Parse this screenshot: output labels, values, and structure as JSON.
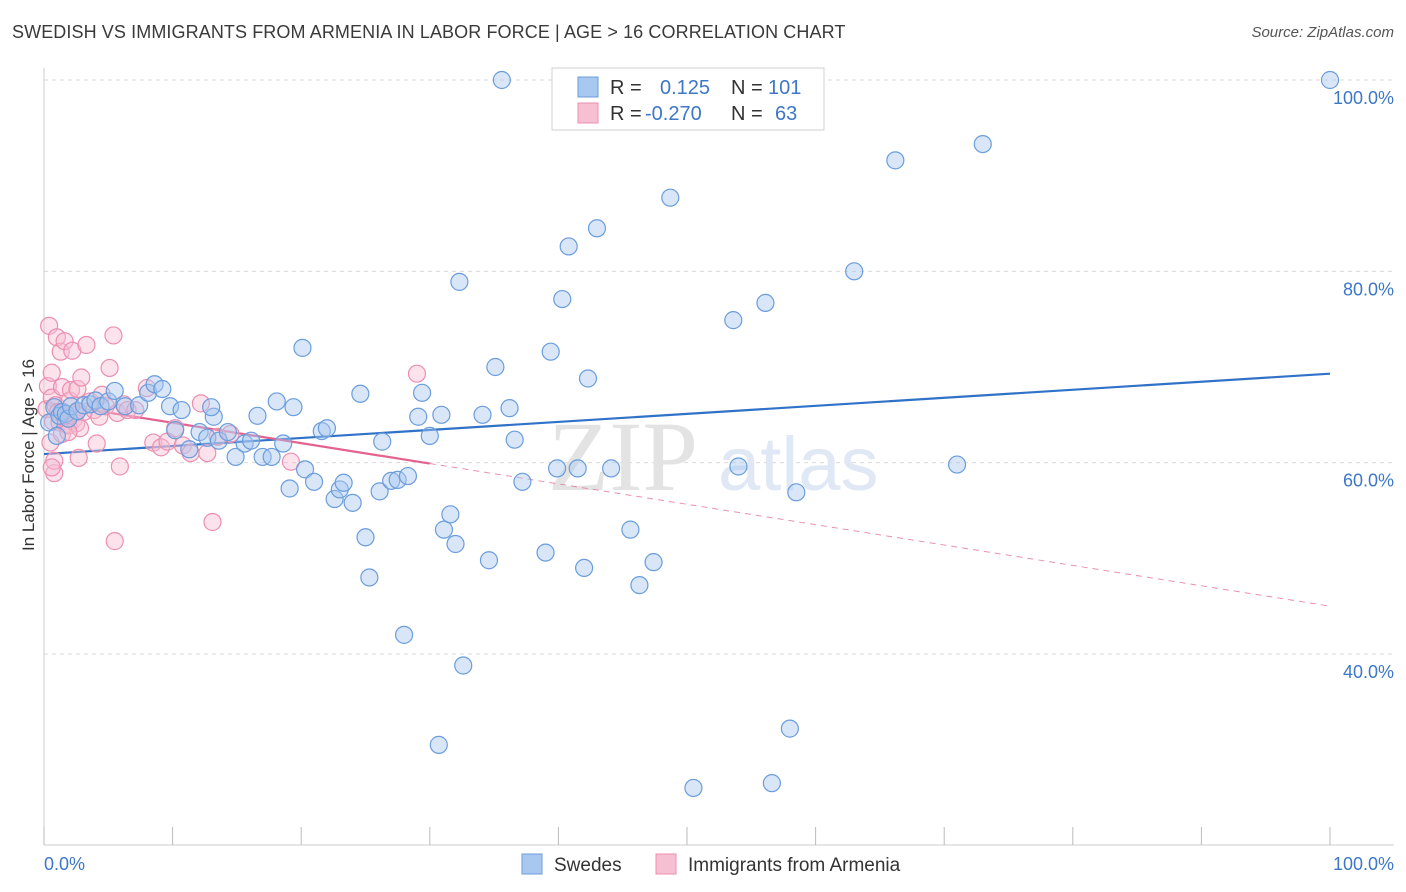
{
  "header": {
    "title": "SWEDISH VS IMMIGRANTS FROM ARMENIA IN LABOR FORCE | AGE > 16 CORRELATION CHART",
    "source": "Source: ZipAtlas.com"
  },
  "watermark": {
    "zip": "ZIP",
    "atlas": "atlas"
  },
  "legend": {
    "rows": [
      {
        "r_label": "R =",
        "r_value": "0.125",
        "n_label": "N =",
        "n_value": "101"
      },
      {
        "r_label": "R =",
        "r_value": "-0.270",
        "n_label": "N =",
        "n_value": "63"
      }
    ]
  },
  "colors": {
    "swedes_fill": "#a9c8ef",
    "swedes_stroke": "#6a9ddc",
    "swedes_line": "#2f72c8",
    "armenia_fill": "#f6bfd2",
    "armenia_stroke": "#ec8fb0",
    "armenia_line": "#e4628f",
    "axis_text": "#3d77c8",
    "grid": "#d9d9d9"
  },
  "chart_data": {
    "type": "scatter",
    "title": "SWEDISH VS IMMIGRANTS FROM ARMENIA IN LABOR FORCE | AGE > 16 CORRELATION CHART",
    "xlabel": "",
    "ylabel": "In Labor Force | Age > 16",
    "xlim": [
      0,
      100
    ],
    "ylim": [
      20,
      102
    ],
    "x_tick_labels": [
      "0.0%",
      "100.0%"
    ],
    "y_ticks": [
      40,
      60,
      80,
      100
    ],
    "y_tick_labels": [
      "40.0%",
      "60.0%",
      "80.0%",
      "100.0%"
    ],
    "series": [
      {
        "name": "Swedes",
        "R": 0.125,
        "N": 101,
        "trend": {
          "x": [
            0,
            100
          ],
          "y": [
            60.9,
            69.3
          ],
          "dashed_from": null
        },
        "points": [
          [
            0.4,
            64.2
          ],
          [
            0.8,
            65.8
          ],
          [
            1.0,
            62.8
          ],
          [
            1.2,
            64.9
          ],
          [
            1.4,
            65.3
          ],
          [
            1.7,
            65.1
          ],
          [
            1.9,
            64.6
          ],
          [
            2.1,
            65.9
          ],
          [
            2.6,
            65.4
          ],
          [
            3.1,
            66.0
          ],
          [
            3.6,
            66.1
          ],
          [
            4.0,
            66.5
          ],
          [
            4.4,
            65.9
          ],
          [
            5.0,
            66.4
          ],
          [
            5.5,
            67.5
          ],
          [
            6.3,
            65.9
          ],
          [
            7.4,
            66.0
          ],
          [
            8.1,
            67.3
          ],
          [
            8.6,
            68.2
          ],
          [
            9.2,
            67.7
          ],
          [
            9.8,
            65.9
          ],
          [
            10.2,
            63.4
          ],
          [
            10.7,
            65.5
          ],
          [
            11.3,
            61.4
          ],
          [
            12.1,
            63.2
          ],
          [
            12.7,
            62.6
          ],
          [
            13.2,
            64.8
          ],
          [
            13.6,
            62.3
          ],
          [
            14.3,
            63.2
          ],
          [
            14.9,
            60.6
          ],
          [
            15.6,
            62.0
          ],
          [
            16.1,
            62.3
          ],
          [
            16.6,
            64.9
          ],
          [
            17.0,
            60.6
          ],
          [
            17.7,
            60.6
          ],
          [
            18.1,
            66.4
          ],
          [
            18.6,
            62.0
          ],
          [
            19.1,
            57.3
          ],
          [
            19.4,
            65.8
          ],
          [
            20.3,
            59.3
          ],
          [
            20.1,
            72.0
          ],
          [
            21.0,
            58.0
          ],
          [
            21.6,
            63.3
          ],
          [
            22.0,
            63.6
          ],
          [
            22.6,
            56.2
          ],
          [
            23.0,
            57.2
          ],
          [
            23.3,
            57.9
          ],
          [
            24.0,
            55.8
          ],
          [
            24.6,
            67.2
          ],
          [
            25.0,
            52.2
          ],
          [
            25.3,
            48.0
          ],
          [
            26.1,
            57.0
          ],
          [
            26.3,
            62.2
          ],
          [
            27.0,
            58.1
          ],
          [
            27.5,
            58.2
          ],
          [
            28.0,
            42.0
          ],
          [
            28.3,
            58.6
          ],
          [
            29.1,
            64.8
          ],
          [
            29.4,
            67.3
          ],
          [
            30.0,
            62.8
          ],
          [
            30.7,
            30.5
          ],
          [
            31.1,
            53.0
          ],
          [
            31.6,
            54.6
          ],
          [
            32.0,
            51.5
          ],
          [
            32.3,
            78.9
          ],
          [
            32.6,
            38.8
          ],
          [
            34.1,
            65.0
          ],
          [
            34.6,
            49.8
          ],
          [
            35.1,
            70.0
          ],
          [
            35.6,
            100.0
          ],
          [
            36.2,
            65.7
          ],
          [
            36.6,
            62.4
          ],
          [
            37.2,
            58.0
          ],
          [
            39.0,
            50.6
          ],
          [
            39.4,
            71.6
          ],
          [
            39.9,
            59.4
          ],
          [
            40.3,
            77.1
          ],
          [
            40.8,
            82.6
          ],
          [
            41.5,
            59.4
          ],
          [
            42.0,
            49.0
          ],
          [
            42.3,
            68.8
          ],
          [
            43.0,
            84.5
          ],
          [
            44.1,
            59.4
          ],
          [
            45.6,
            53.0
          ],
          [
            46.3,
            47.2
          ],
          [
            47.4,
            49.6
          ],
          [
            48.7,
            87.7
          ],
          [
            50.5,
            26.0
          ],
          [
            53.6,
            74.9
          ],
          [
            54.0,
            59.6
          ],
          [
            56.1,
            76.7
          ],
          [
            56.6,
            26.5
          ],
          [
            58.0,
            32.2
          ],
          [
            58.5,
            56.9
          ],
          [
            63.0,
            80.0
          ],
          [
            66.2,
            91.6
          ],
          [
            71.0,
            59.8
          ],
          [
            73.0,
            93.3
          ],
          [
            100.0,
            100.0
          ],
          [
            30.9,
            65.0
          ],
          [
            13.0,
            65.8
          ]
        ]
      },
      {
        "name": "Immigrants from Armenia",
        "R": -0.27,
        "N": 63,
        "trend": {
          "x": [
            0,
            100
          ],
          "y": [
            66.3,
            45.0
          ],
          "solid_until": 30
        },
        "points": [
          [
            0.2,
            65.6
          ],
          [
            0.3,
            68.0
          ],
          [
            0.4,
            74.3
          ],
          [
            0.5,
            62.1
          ],
          [
            0.6,
            66.8
          ],
          [
            0.6,
            69.4
          ],
          [
            0.7,
            64.3
          ],
          [
            0.8,
            58.9
          ],
          [
            0.8,
            60.2
          ],
          [
            0.9,
            66.0
          ],
          [
            1.0,
            73.1
          ],
          [
            1.1,
            65.3
          ],
          [
            1.2,
            64.2
          ],
          [
            1.3,
            71.6
          ],
          [
            1.4,
            67.9
          ],
          [
            1.4,
            63.0
          ],
          [
            1.5,
            65.3
          ],
          [
            1.6,
            72.7
          ],
          [
            1.7,
            64.0
          ],
          [
            1.8,
            65.0
          ],
          [
            1.9,
            63.9
          ],
          [
            2.0,
            66.5
          ],
          [
            2.1,
            67.6
          ],
          [
            2.2,
            71.7
          ],
          [
            2.3,
            64.5
          ],
          [
            2.4,
            65.2
          ],
          [
            2.5,
            64.1
          ],
          [
            2.6,
            67.7
          ],
          [
            2.7,
            60.5
          ],
          [
            2.8,
            63.6
          ],
          [
            2.9,
            68.9
          ],
          [
            3.1,
            65.3
          ],
          [
            3.3,
            72.3
          ],
          [
            3.6,
            66.4
          ],
          [
            3.9,
            65.5
          ],
          [
            4.1,
            62.0
          ],
          [
            4.3,
            64.8
          ],
          [
            4.5,
            67.1
          ],
          [
            4.8,
            65.9
          ],
          [
            5.1,
            69.9
          ],
          [
            5.4,
            73.3
          ],
          [
            5.5,
            51.8
          ],
          [
            5.7,
            65.2
          ],
          [
            5.9,
            59.6
          ],
          [
            6.2,
            66.1
          ],
          [
            6.5,
            65.5
          ],
          [
            7.1,
            65.5
          ],
          [
            8.0,
            67.8
          ],
          [
            8.5,
            62.1
          ],
          [
            9.1,
            61.6
          ],
          [
            9.6,
            62.2
          ],
          [
            10.2,
            63.6
          ],
          [
            10.8,
            61.8
          ],
          [
            11.4,
            61.0
          ],
          [
            12.2,
            66.2
          ],
          [
            12.7,
            61.0
          ],
          [
            13.1,
            53.8
          ],
          [
            13.5,
            62.7
          ],
          [
            14.5,
            63.0
          ],
          [
            19.2,
            60.1
          ],
          [
            29.0,
            69.3
          ],
          [
            0.6,
            59.5
          ],
          [
            1.9,
            63.2
          ]
        ]
      }
    ]
  },
  "bottom_legend": {
    "items": [
      {
        "label": "Swedes"
      },
      {
        "label": "Immigrants from Armenia"
      }
    ]
  }
}
